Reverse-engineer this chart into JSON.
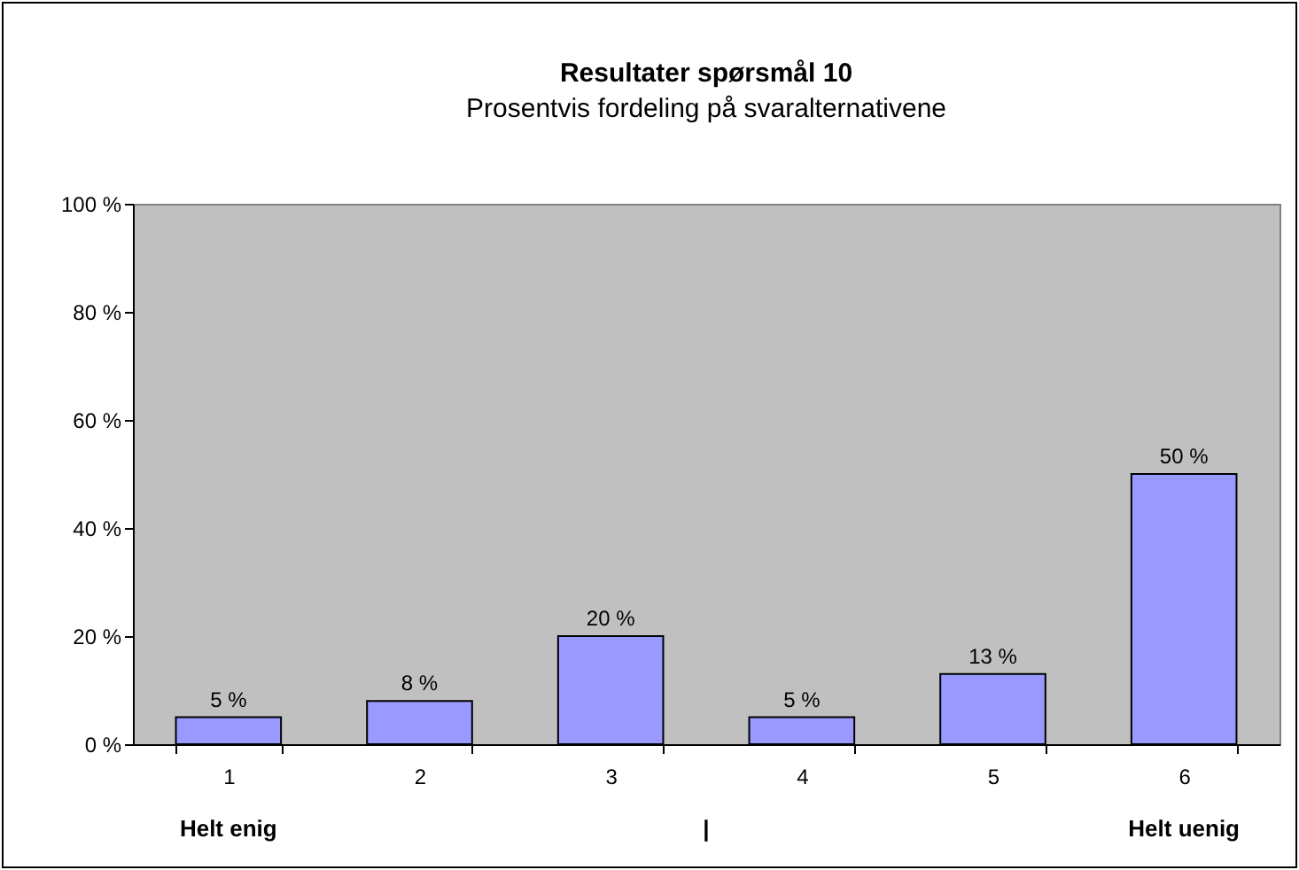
{
  "chart_data": {
    "type": "bar",
    "title": "Resultater spørsmål 10",
    "subtitle": "Prosentvis fordeling på svaralternativene",
    "categories": [
      "1",
      "2",
      "3",
      "4",
      "5",
      "6"
    ],
    "values": [
      5,
      8,
      20,
      5,
      13,
      50
    ],
    "value_labels": [
      "5 %",
      "8 %",
      "20 %",
      "5 %",
      "13 %",
      "50 %"
    ],
    "color": "#9999ff",
    "ylim": [
      0,
      100
    ],
    "yticks": [
      {
        "value": 0,
        "label": "0 %"
      },
      {
        "value": 20,
        "label": "20 %"
      },
      {
        "value": 40,
        "label": "40 %"
      },
      {
        "value": 60,
        "label": "60 %"
      },
      {
        "value": 80,
        "label": "80 %"
      },
      {
        "value": 100,
        "label": "100 %"
      }
    ],
    "grid": false,
    "annotations": [
      "Helt enig",
      "|",
      "Helt uenig"
    ]
  }
}
